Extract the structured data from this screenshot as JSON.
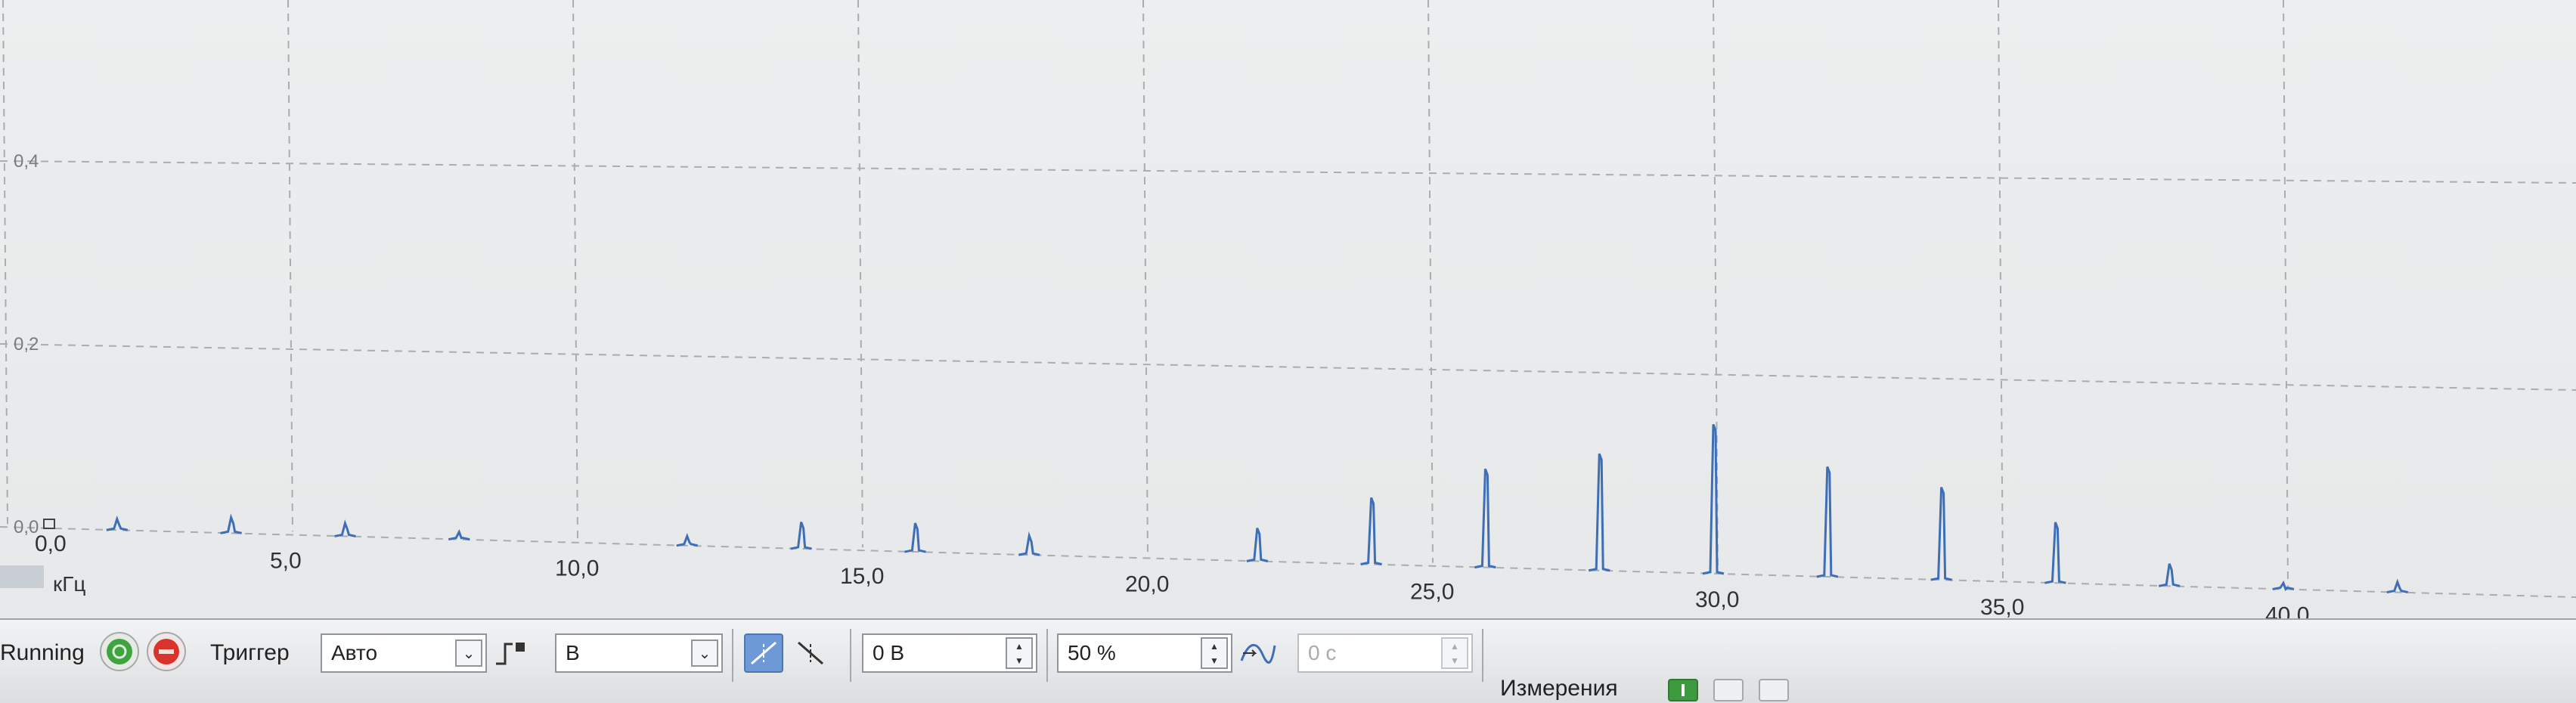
{
  "chart_data": {
    "type": "line",
    "title": "",
    "xlabel": "кГц",
    "ylabel": "",
    "xlim": [
      0,
      40.5
    ],
    "ylim": [
      0,
      0.55
    ],
    "x_ticks": [
      "0,0",
      "5,0",
      "10,0",
      "15,0",
      "20,0",
      "25,0",
      "30,0",
      "35,0",
      "40,0"
    ],
    "x_tick_values": [
      0,
      5,
      10,
      15,
      20,
      25,
      30,
      35,
      40
    ],
    "y_ticks": [
      "0,0",
      "0,2",
      "0,4"
    ],
    "y_tick_values": [
      0,
      0.2,
      0.4
    ],
    "grid": true,
    "series": [
      {
        "color": "#3e6eb6",
        "peaks": [
          {
            "x": 2.0,
            "y": 0.012
          },
          {
            "x": 4.0,
            "y": 0.017
          },
          {
            "x": 6.0,
            "y": 0.014
          },
          {
            "x": 8.0,
            "y": 0.008
          },
          {
            "x": 12.0,
            "y": 0.01
          },
          {
            "x": 14.0,
            "y": 0.028
          },
          {
            "x": 16.0,
            "y": 0.03
          },
          {
            "x": 18.0,
            "y": 0.02
          },
          {
            "x": 22.0,
            "y": 0.034
          },
          {
            "x": 24.0,
            "y": 0.068
          },
          {
            "x": 26.0,
            "y": 0.1
          },
          {
            "x": 28.0,
            "y": 0.118
          },
          {
            "x": 30.0,
            "y": 0.15
          },
          {
            "x": 32.0,
            "y": 0.11
          },
          {
            "x": 34.0,
            "y": 0.092
          },
          {
            "x": 36.0,
            "y": 0.06
          },
          {
            "x": 38.0,
            "y": 0.022
          },
          {
            "x": 40.0,
            "y": 0.006
          },
          {
            "x": 42.0,
            "y": 0.01
          }
        ]
      }
    ]
  },
  "toolbar": {
    "status": "Running",
    "trigger_label": "Триггер",
    "trigger_mode": "Авто",
    "channel": "В",
    "threshold": "0 В",
    "pretrigger": "50 %",
    "delay": "0 с",
    "measurements_label": "Измерения"
  },
  "colors": {
    "trace": "#3e6eb6",
    "run_button": "#3fa33f",
    "stop_button": "#d9342b",
    "toggle_active": "#6d9ad6"
  }
}
